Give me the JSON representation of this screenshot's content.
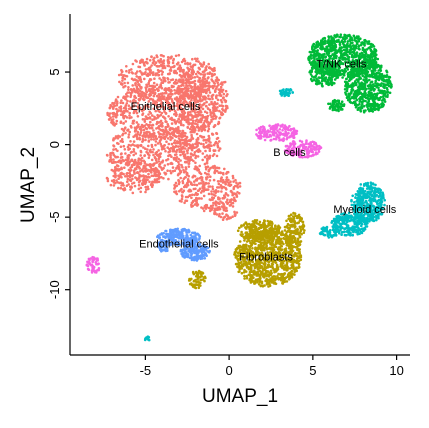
{
  "chart_data": {
    "type": "scatter",
    "xlabel": "UMAP_1",
    "ylabel": "UMAP_2",
    "xlim": [
      -9.5,
      10.8
    ],
    "ylim": [
      -14.5,
      9.0
    ],
    "xticks": [
      -5,
      0,
      5,
      10
    ],
    "yticks": [
      5,
      0,
      -5,
      -10
    ],
    "xtick_labels": [
      "-5",
      "0",
      "5",
      "10"
    ],
    "ytick_labels": [
      "5",
      "0",
      "-5",
      "-10"
    ],
    "grid": false,
    "legend": "none",
    "series": [
      {
        "name": "Epithelial cells",
        "color": "#F8766D",
        "label_at": [
          -3.8,
          2.6
        ],
        "regions": [
          {
            "cx": -3.6,
            "cy": 4.6,
            "rx": 3.0,
            "ry": 1.6
          },
          {
            "cx": -4.0,
            "cy": 2.2,
            "rx": 3.3,
            "ry": 1.8
          },
          {
            "cx": -4.7,
            "cy": -0.6,
            "rx": 2.6,
            "ry": 2.0
          },
          {
            "cx": -5.7,
            "cy": -2.2,
            "rx": 1.6,
            "ry": 1.2
          },
          {
            "cx": -1.6,
            "cy": 3.2,
            "rx": 1.6,
            "ry": 2.2
          },
          {
            "cx": -1.8,
            "cy": 0.0,
            "rx": 1.3,
            "ry": 1.4
          },
          {
            "cx": -1.3,
            "cy": -3.0,
            "rx": 2.0,
            "ry": 1.6
          },
          {
            "cx": -0.2,
            "cy": -4.4,
            "rx": 0.8,
            "ry": 0.8
          }
        ],
        "count": 2600
      },
      {
        "name": "T/NK cells",
        "color": "#00BA38",
        "label_at": [
          6.7,
          5.5
        ],
        "regions": [
          {
            "cx": 6.8,
            "cy": 6.1,
            "rx": 2.1,
            "ry": 1.5
          },
          {
            "cx": 8.3,
            "cy": 4.0,
            "rx": 1.4,
            "ry": 1.8
          },
          {
            "cx": 5.7,
            "cy": 4.9,
            "rx": 0.9,
            "ry": 0.9
          },
          {
            "cx": 6.4,
            "cy": 2.7,
            "rx": 0.5,
            "ry": 0.4
          }
        ],
        "count": 1500
      },
      {
        "name": "B cells",
        "color": "#F564E3",
        "label_at": [
          3.6,
          -0.6
        ],
        "regions": [
          {
            "cx": 2.8,
            "cy": 0.8,
            "rx": 1.3,
            "ry": 0.6
          },
          {
            "cx": 4.4,
            "cy": -0.3,
            "rx": 1.1,
            "ry": 0.6
          },
          {
            "cx": -8.1,
            "cy": -8.3,
            "rx": 0.4,
            "ry": 0.6
          }
        ],
        "count": 380
      },
      {
        "name": "Myeloid cells",
        "color": "#00BFC4",
        "label_at": [
          8.1,
          -4.5
        ],
        "regions": [
          {
            "cx": 8.3,
            "cy": -4.0,
            "rx": 1.0,
            "ry": 1.4
          },
          {
            "cx": 7.2,
            "cy": -5.5,
            "rx": 1.1,
            "ry": 0.8
          },
          {
            "cx": 6.0,
            "cy": -6.0,
            "rx": 0.6,
            "ry": 0.4
          },
          {
            "cx": 3.4,
            "cy": 3.6,
            "rx": 0.4,
            "ry": 0.3
          },
          {
            "cx": -4.9,
            "cy": -13.4,
            "rx": 0.15,
            "ry": 0.2
          }
        ],
        "count": 700
      },
      {
        "name": "Fibroblasts",
        "color": "#B79F00",
        "label_at": [
          2.2,
          -7.8
        ],
        "regions": [
          {
            "cx": 2.3,
            "cy": -7.8,
            "rx": 2.0,
            "ry": 2.0
          },
          {
            "cx": 1.8,
            "cy": -5.9,
            "rx": 1.3,
            "ry": 0.7
          },
          {
            "cx": 3.9,
            "cy": -5.9,
            "rx": 0.6,
            "ry": 1.2
          },
          {
            "cx": -1.9,
            "cy": -9.3,
            "rx": 0.5,
            "ry": 0.6
          }
        ],
        "count": 1300
      },
      {
        "name": "Endothelial cells",
        "color": "#619CFF",
        "label_at": [
          -3.0,
          -6.9
        ],
        "regions": [
          {
            "cx": -3.0,
            "cy": -6.4,
            "rx": 1.3,
            "ry": 0.6
          },
          {
            "cx": -2.0,
            "cy": -7.4,
            "rx": 0.9,
            "ry": 0.6
          },
          {
            "cx": -3.9,
            "cy": -7.0,
            "rx": 0.4,
            "ry": 0.4
          }
        ],
        "count": 420
      }
    ]
  }
}
